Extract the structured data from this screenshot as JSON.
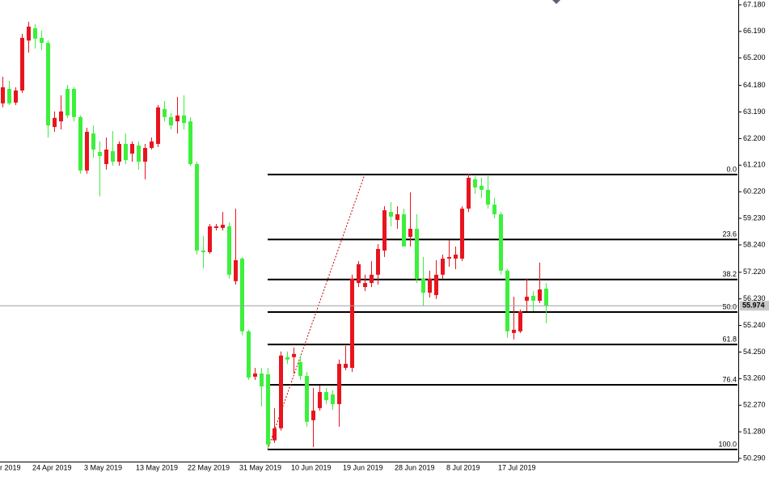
{
  "chart_data": {
    "type": "candlestick",
    "categories": [
      "r 2019",
      null,
      null,
      null,
      null,
      "24 Apr 2019",
      null,
      null,
      null,
      null,
      null,
      null,
      null,
      "3 May 2019",
      null,
      null,
      null,
      null,
      null,
      null,
      null,
      "13 May 2019",
      null,
      null,
      null,
      null,
      null,
      null,
      null,
      "22 May 2019",
      null,
      null,
      null,
      null,
      null,
      null,
      null,
      "31 May 2019",
      null,
      null,
      null,
      null,
      null,
      null,
      null,
      "10 Jun 2019",
      null,
      null,
      null,
      null,
      null,
      null,
      null,
      "19 Jun 2019",
      null,
      null,
      null,
      null,
      null,
      null,
      null,
      "28 Jun 2019",
      null,
      null,
      null,
      null,
      null,
      null,
      null,
      "8 Jul 2019",
      null,
      null,
      null,
      null,
      null,
      null,
      null,
      "17 Jul 2019",
      null,
      null,
      null,
      null,
      null,
      null,
      null
    ],
    "open": [
      63.51,
      64.05,
      63.54,
      63.99,
      65.85,
      66.31,
      65.95,
      65.76,
      62.63,
      62.84,
      64.05,
      64.05,
      63.0,
      61.01,
      62.39,
      61.7,
      61.25,
      61.73,
      61.34,
      62.0,
      61.64,
      61.94,
      61.34,
      61.85,
      62.0,
      63.3,
      63.0,
      62.84,
      63.06,
      62.84,
      61.25,
      58.03,
      57.97,
      58.87,
      58.87,
      58.93,
      56.89,
      57.73,
      55.02,
      53.33,
      53.45,
      53.42,
      50.96,
      51.41,
      54.06,
      54.06,
      53.88,
      53.36,
      51.71,
      52.16,
      52.76,
      52.67,
      52.31,
      53.66,
      53.66,
      56.82,
      56.67,
      56.82,
      57.13,
      58.03,
      59.47,
      59.17,
      59.38,
      58.54,
      58.84,
      56.98,
      56.46,
      56.37,
      57.13,
      57.73,
      57.73,
      57.73,
      59.59,
      60.68,
      60.44,
      60.29,
      59.74,
      59.38,
      57.28,
      54.96,
      55.02,
      56.16,
      56.34,
      56.16,
      56.61
    ],
    "high": [
      64.5,
      64.35,
      64.11,
      66.1,
      66.55,
      66.46,
      66.22,
      65.85,
      63.21,
      63.81,
      64.2,
      64.11,
      63.06,
      62.6,
      62.69,
      62.09,
      62.24,
      62.48,
      62.09,
      62.39,
      62.09,
      62.09,
      62.0,
      62.24,
      63.45,
      63.6,
      63.15,
      63.75,
      63.81,
      63.0,
      61.34,
      58.57,
      59.02,
      59.02,
      59.47,
      59.08,
      59.59,
      57.79,
      55.08,
      53.66,
      53.66,
      53.66,
      52.16,
      54.27,
      54.27,
      54.42,
      54.12,
      53.51,
      52.91,
      53.0,
      52.91,
      52.82,
      53.97,
      54.48,
      57.13,
      57.64,
      57.13,
      57.64,
      58.27,
      59.68,
      59.83,
      59.68,
      59.59,
      60.2,
      59.38,
      57.79,
      57.28,
      57.67,
      57.88,
      58.42,
      58.18,
      59.68,
      60.89,
      60.8,
      60.74,
      60.8,
      59.99,
      59.47,
      57.34,
      56.31,
      55.83,
      56.98,
      56.52,
      57.58,
      56.82
    ],
    "low": [
      63.36,
      63.45,
      63.45,
      63.9,
      65.4,
      65.55,
      65.49,
      62.24,
      62.45,
      62.54,
      62.97,
      62.84,
      60.89,
      60.89,
      61.49,
      60.05,
      61.04,
      61.19,
      61.19,
      61.25,
      61.34,
      61.04,
      60.68,
      61.79,
      61.88,
      62.84,
      62.54,
      62.39,
      62.54,
      61.19,
      57.88,
      57.37,
      57.91,
      58.78,
      58.78,
      56.98,
      56.76,
      54.87,
      53.21,
      53.21,
      52.22,
      50.65,
      50.87,
      51.32,
      53.81,
      53.45,
      53.21,
      51.47,
      50.71,
      52.07,
      52.31,
      52.1,
      51.47,
      53.57,
      53.51,
      56.67,
      56.52,
      56.67,
      56.76,
      57.79,
      58.93,
      58.84,
      58.18,
      58.18,
      56.82,
      55.98,
      56.28,
      56.22,
      56.98,
      57.43,
      57.34,
      57.64,
      59.47,
      60.14,
      59.99,
      59.59,
      59.23,
      57.13,
      54.78,
      54.72,
      54.96,
      55.77,
      55.77,
      56.07,
      55.32
    ],
    "close": [
      64.11,
      63.51,
      63.99,
      65.95,
      66.37,
      65.92,
      65.76,
      62.69,
      62.97,
      63.21,
      63.06,
      63.0,
      61.01,
      62.45,
      61.79,
      61.55,
      61.79,
      61.34,
      62.0,
      61.4,
      62.0,
      61.34,
      61.85,
      62.09,
      63.36,
      63.0,
      62.69,
      63.06,
      62.78,
      61.25,
      58.03,
      57.97,
      58.93,
      58.93,
      58.99,
      57.13,
      57.67,
      55.02,
      53.3,
      53.45,
      52.97,
      50.8,
      51.41,
      54.12,
      53.97,
      54.18,
      53.36,
      51.65,
      52.07,
      52.76,
      52.46,
      52.31,
      53.81,
      53.81,
      56.98,
      57.52,
      56.82,
      57.13,
      58.09,
      59.53,
      59.29,
      59.38,
      58.18,
      58.84,
      56.98,
      56.46,
      56.98,
      57.13,
      57.73,
      57.79,
      57.88,
      59.59,
      60.74,
      60.38,
      60.29,
      59.74,
      59.38,
      57.28,
      55.02,
      55.08,
      55.77,
      56.31,
      56.16,
      56.58,
      55.974
    ],
    "up_color": "#e8141e",
    "down_color": "#3cf03c",
    "ylim": [
      50.17,
      67.36
    ],
    "yticks": [
      {
        "value": 67.18,
        "label": "67.180"
      },
      {
        "value": 66.19,
        "label": "66.190"
      },
      {
        "value": 65.2,
        "label": "65.200"
      },
      {
        "value": 64.18,
        "label": "64.180"
      },
      {
        "value": 63.19,
        "label": "63.190"
      },
      {
        "value": 62.2,
        "label": "62.200"
      },
      {
        "value": 61.21,
        "label": "61.210"
      },
      {
        "value": 60.22,
        "label": "60.220"
      },
      {
        "value": 59.23,
        "label": "59.230"
      },
      {
        "value": 58.24,
        "label": "58.240"
      },
      {
        "value": 57.22,
        "label": "57.220"
      },
      {
        "value": 56.23,
        "label": "56.230"
      },
      {
        "value": 55.24,
        "label": "55.240"
      },
      {
        "value": 54.25,
        "label": "54.250"
      },
      {
        "value": 53.26,
        "label": "53.260"
      },
      {
        "value": 52.27,
        "label": "52.270"
      },
      {
        "value": 51.28,
        "label": "51.280"
      },
      {
        "value": 50.29,
        "label": "50.290"
      }
    ],
    "fib_levels": [
      {
        "label": "0.0",
        "value": 60.86
      },
      {
        "label": "23.6",
        "value": 58.44
      },
      {
        "label": "38.2",
        "value": 56.95
      },
      {
        "label": "50.0",
        "value": 55.74
      },
      {
        "label": "61.8",
        "value": 54.53
      },
      {
        "label": "76.4",
        "value": 53.03
      },
      {
        "label": "100.0",
        "value": 50.62
      }
    ],
    "current_price": 55.974
  }
}
